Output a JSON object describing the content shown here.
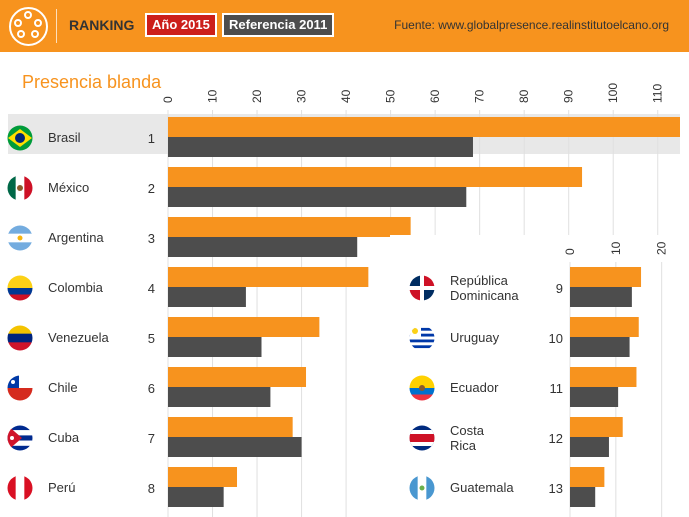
{
  "header": {
    "ranking_label": "RANKING",
    "badge_current": "Año 2015",
    "badge_reference": "Referencia 2011",
    "source": "Fuente: www.globalpresence.realinstitutoelcano.org",
    "logo_icon": "film-reel-icon"
  },
  "colors": {
    "current": "#f7931e",
    "reference": "#4d4d4d",
    "header_bg": "#f7931e",
    "highlight_row": "#e8e8e8"
  },
  "chart_data": [
    {
      "type": "bar",
      "title": "Presencia blanda",
      "orientation": "horizontal",
      "xlim": [
        0,
        115
      ],
      "ticks": [
        0,
        10,
        20,
        30,
        40,
        50,
        60,
        70,
        80,
        90,
        100,
        110
      ],
      "categories": [
        "Brasil",
        "México",
        "Argentina",
        "Colombia",
        "Venezuela",
        "Chile",
        "Cuba",
        "Perú"
      ],
      "ranks": [
        "1",
        "2",
        "3",
        "4",
        "5",
        "6",
        "7",
        "8"
      ],
      "flags": [
        "flag-brazil-icon",
        "flag-mexico-icon",
        "flag-argentina-icon",
        "flag-colombia-icon",
        "flag-venezuela-icon",
        "flag-chile-icon",
        "flag-cuba-icon",
        "flag-peru-icon"
      ],
      "series": [
        {
          "name": "Año 2015",
          "values": [
            115,
            93,
            54.5,
            45,
            34,
            31,
            28,
            15.5
          ]
        },
        {
          "name": "Referencia 2011",
          "values": [
            68.5,
            67,
            42.5,
            17.5,
            21,
            23,
            30,
            12.5
          ]
        }
      ]
    },
    {
      "type": "bar",
      "orientation": "horizontal",
      "xlim": [
        0,
        24
      ],
      "ticks": [
        0,
        10,
        20
      ],
      "categories": [
        "República Dominicana",
        "Uruguay",
        "Ecuador",
        "Costa Rica",
        "Guatemala"
      ],
      "ranks": [
        "9",
        "10",
        "11",
        "12",
        "13"
      ],
      "flags": [
        "flag-dominican-republic-icon",
        "flag-uruguay-icon",
        "flag-ecuador-icon",
        "flag-costa-rica-icon",
        "flag-guatemala-icon"
      ],
      "series": [
        {
          "name": "Año 2015",
          "values": [
            15.5,
            15,
            14.5,
            11.5,
            7.5
          ]
        },
        {
          "name": "Referencia 2011",
          "values": [
            13.5,
            13,
            10.5,
            8.5,
            5.5
          ]
        }
      ]
    }
  ]
}
